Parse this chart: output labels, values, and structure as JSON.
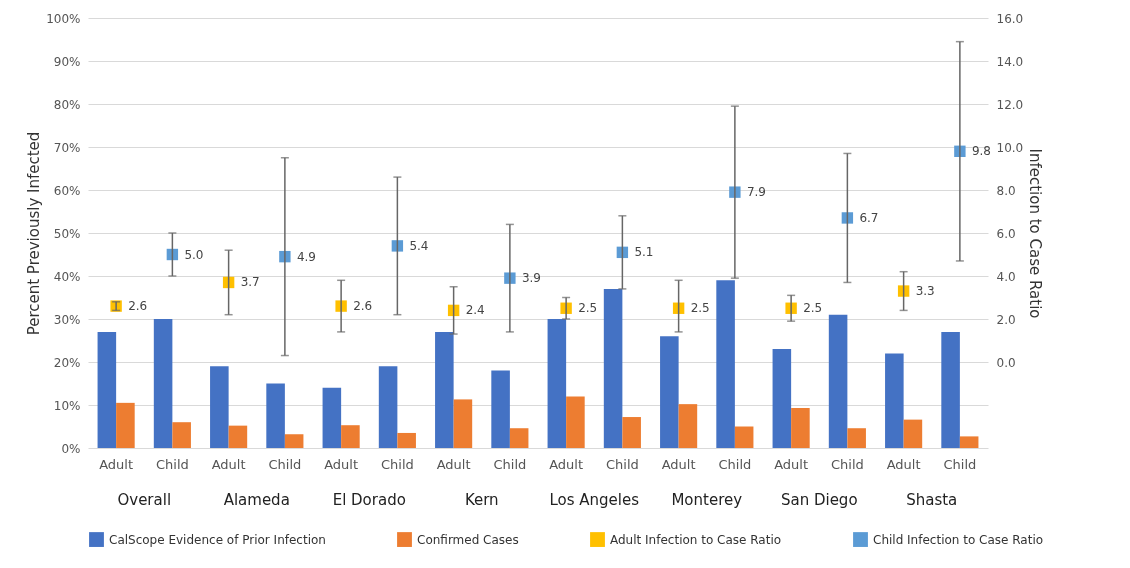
{
  "chart_data": {
    "type": "bar",
    "categories": [
      "Adult",
      "Child",
      "Adult",
      "Child",
      "Adult",
      "Child",
      "Adult",
      "Child",
      "Adult",
      "Child",
      "Adult",
      "Child",
      "Adult",
      "Child",
      "Adult",
      "Child"
    ],
    "series": [
      {
        "name": "CalScope Evidence of Prior Infection",
        "type": "bar",
        "color": "#4472c4",
        "values": [
          27,
          30,
          19,
          15,
          14,
          19,
          27,
          18,
          30,
          37,
          26,
          39,
          23,
          31,
          22,
          27
        ]
      },
      {
        "name": "Confirmed Cases",
        "type": "bar",
        "color": "#ed7d31",
        "values": [
          10.5,
          6,
          5.2,
          3.2,
          5.3,
          3.5,
          11.3,
          4.6,
          12,
          7.2,
          10.2,
          5,
          9.3,
          4.6,
          6.6,
          2.7
        ]
      },
      {
        "name": "Adult Infection to Case Ratio",
        "type": "scatter",
        "axis": "y2",
        "color": "#ffc000",
        "marker": "square",
        "values": [
          2.6,
          null,
          3.7,
          null,
          2.6,
          null,
          2.4,
          null,
          2.5,
          null,
          2.5,
          null,
          2.5,
          null,
          3.3,
          null
        ],
        "errors": [
          [
            2.4,
            2.8
          ],
          null,
          [
            2.2,
            5.2
          ],
          null,
          [
            1.4,
            3.8
          ],
          null,
          [
            1.3,
            3.5
          ],
          null,
          [
            2.0,
            3.0
          ],
          null,
          [
            1.4,
            3.8
          ],
          null,
          [
            1.9,
            3.1
          ],
          null,
          [
            2.4,
            4.2
          ],
          null
        ],
        "value_labels": [
          "2.6",
          null,
          "3.7",
          null,
          "2.6",
          null,
          "2.4",
          null,
          "2.5",
          null,
          "2.5",
          null,
          "2.5",
          null,
          "3.3",
          null
        ]
      },
      {
        "name": "Child Infection to Case Ratio",
        "type": "scatter",
        "axis": "y2",
        "color": "#5b9bd5",
        "marker": "square",
        "values": [
          null,
          5.0,
          null,
          4.9,
          null,
          5.4,
          null,
          3.9,
          null,
          5.1,
          null,
          7.9,
          null,
          6.7,
          null,
          9.8
        ],
        "errors": [
          null,
          [
            4.0,
            6.0
          ],
          null,
          [
            0.3,
            9.5
          ],
          null,
          [
            2.2,
            8.6
          ],
          null,
          [
            1.4,
            6.4
          ],
          null,
          [
            3.4,
            6.8
          ],
          null,
          [
            3.9,
            11.9
          ],
          null,
          [
            3.7,
            9.7
          ],
          null,
          [
            4.7,
            14.9
          ]
        ],
        "value_labels": [
          null,
          "5.0",
          null,
          "4.9",
          null,
          "5.4",
          null,
          "3.9",
          null,
          "5.1",
          null,
          "7.9",
          null,
          "6.7",
          null,
          "9.8"
        ]
      }
    ],
    "annotations": [
      "Overall",
      "Alameda",
      "El Dorado",
      "Kern",
      "Los Angeles",
      "Monterey",
      "San Diego",
      "Shasta"
    ],
    "ylabel": "Percent Previously Infected",
    "y2label": "Infection to Case Ratio",
    "ylim": [
      0,
      100
    ],
    "yticks": [
      {
        "value": 0,
        "label": "0%"
      },
      {
        "value": 10,
        "label": "10%"
      },
      {
        "value": 20,
        "label": "20%"
      },
      {
        "value": 30,
        "label": "30%"
      },
      {
        "value": 40,
        "label": "40%"
      },
      {
        "value": 50,
        "label": "50%"
      },
      {
        "value": 60,
        "label": "60%"
      },
      {
        "value": 70,
        "label": "70%"
      },
      {
        "value": 80,
        "label": "80%"
      },
      {
        "value": 90,
        "label": "90%"
      },
      {
        "value": 100,
        "label": "100%"
      }
    ],
    "y2lim": [
      -4,
      16
    ],
    "y2ticks": [
      {
        "value": 0,
        "label": "0.0"
      },
      {
        "value": 2,
        "label": "2.0"
      },
      {
        "value": 4,
        "label": "4.0"
      },
      {
        "value": 6,
        "label": "6.0"
      },
      {
        "value": 8,
        "label": "8.0"
      },
      {
        "value": 10,
        "label": "10.0"
      },
      {
        "value": 12,
        "label": "12.0"
      },
      {
        "value": 14,
        "label": "14.0"
      },
      {
        "value": 16,
        "label": "16.0"
      }
    ],
    "grid": "y",
    "legend": "bottom"
  }
}
